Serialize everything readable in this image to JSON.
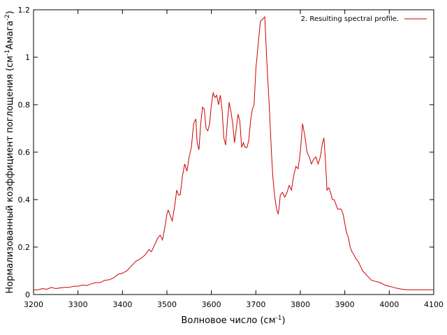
{
  "chart_data": {
    "type": "line",
    "title": "",
    "xlabel": "Волновое число (см",
    "xlabel_sup": "-1",
    "xlabel_end": ")",
    "ylabel": "Нормализованный коэффициент поглощения (см",
    "ylabel_sup1": "-1",
    "ylabel_mid": "Амага",
    "ylabel_sup2": "-2",
    "ylabel_end": ")",
    "xlim": [
      3200,
      4100
    ],
    "ylim": [
      0,
      1.2
    ],
    "xticks": [
      "3200",
      "3300",
      "3400",
      "3500",
      "3600",
      "3700",
      "3800",
      "3900",
      "4000",
      "4100"
    ],
    "yticks": [
      "0",
      "0.2",
      "0.4",
      "0.6",
      "0.8",
      "1",
      "1.2"
    ],
    "grid": false,
    "legend_position": "top-right",
    "series": [
      {
        "name": "2. Resulting spectral profile.",
        "color": "#cc0000",
        "x": [
          3200,
          3210,
          3220,
          3230,
          3240,
          3250,
          3260,
          3270,
          3280,
          3290,
          3300,
          3310,
          3320,
          3330,
          3340,
          3350,
          3360,
          3370,
          3380,
          3390,
          3400,
          3410,
          3420,
          3430,
          3440,
          3450,
          3460,
          3465,
          3470,
          3480,
          3485,
          3490,
          3495,
          3500,
          3503,
          3508,
          3512,
          3518,
          3522,
          3526,
          3530,
          3535,
          3540,
          3545,
          3550,
          3555,
          3560,
          3565,
          3568,
          3572,
          3576,
          3580,
          3584,
          3588,
          3592,
          3596,
          3600,
          3604,
          3608,
          3612,
          3616,
          3620,
          3624,
          3628,
          3632,
          3636,
          3640,
          3644,
          3648,
          3652,
          3656,
          3660,
          3664,
          3668,
          3672,
          3676,
          3680,
          3684,
          3688,
          3692,
          3696,
          3700,
          3705,
          3710,
          3715,
          3720,
          3725,
          3730,
          3735,
          3738,
          3742,
          3745,
          3748,
          3750,
          3752,
          3755,
          3760,
          3765,
          3770,
          3775,
          3780,
          3785,
          3790,
          3795,
          3800,
          3805,
          3810,
          3815,
          3820,
          3825,
          3830,
          3835,
          3840,
          3845,
          3850,
          3853,
          3856,
          3860,
          3864,
          3868,
          3872,
          3876,
          3880,
          3884,
          3888,
          3892,
          3896,
          3900,
          3904,
          3908,
          3912,
          3916,
          3920,
          3925,
          3930,
          3935,
          3940,
          3945,
          3950,
          3955,
          3960,
          3970,
          3980,
          3990,
          4000,
          4010,
          4020,
          4030,
          4040,
          4050,
          4060,
          4070,
          4080,
          4090,
          4100
        ],
        "y": [
          0.02,
          0.02,
          0.025,
          0.022,
          0.03,
          0.025,
          0.028,
          0.03,
          0.03,
          0.035,
          0.035,
          0.04,
          0.038,
          0.045,
          0.05,
          0.05,
          0.06,
          0.062,
          0.07,
          0.085,
          0.09,
          0.1,
          0.12,
          0.14,
          0.15,
          0.165,
          0.19,
          0.18,
          0.2,
          0.24,
          0.25,
          0.23,
          0.28,
          0.34,
          0.355,
          0.33,
          0.31,
          0.38,
          0.44,
          0.42,
          0.42,
          0.5,
          0.55,
          0.52,
          0.58,
          0.62,
          0.72,
          0.74,
          0.64,
          0.61,
          0.72,
          0.79,
          0.78,
          0.7,
          0.69,
          0.72,
          0.8,
          0.85,
          0.83,
          0.84,
          0.8,
          0.84,
          0.78,
          0.66,
          0.63,
          0.73,
          0.81,
          0.77,
          0.72,
          0.64,
          0.7,
          0.76,
          0.73,
          0.62,
          0.64,
          0.62,
          0.62,
          0.65,
          0.73,
          0.78,
          0.8,
          0.95,
          1.05,
          1.15,
          1.16,
          1.17,
          0.97,
          0.8,
          0.6,
          0.5,
          0.42,
          0.38,
          0.35,
          0.34,
          0.36,
          0.42,
          0.43,
          0.41,
          0.43,
          0.46,
          0.44,
          0.5,
          0.54,
          0.53,
          0.6,
          0.72,
          0.67,
          0.6,
          0.58,
          0.55,
          0.57,
          0.58,
          0.55,
          0.58,
          0.64,
          0.66,
          0.58,
          0.44,
          0.45,
          0.43,
          0.4,
          0.4,
          0.38,
          0.36,
          0.36,
          0.36,
          0.34,
          0.3,
          0.26,
          0.24,
          0.2,
          0.18,
          0.17,
          0.15,
          0.14,
          0.12,
          0.1,
          0.09,
          0.08,
          0.07,
          0.06,
          0.055,
          0.05,
          0.04,
          0.035,
          0.03,
          0.025,
          0.022,
          0.02,
          0.02,
          0.02,
          0.02,
          0.02,
          0.02,
          0.02
        ]
      }
    ]
  }
}
